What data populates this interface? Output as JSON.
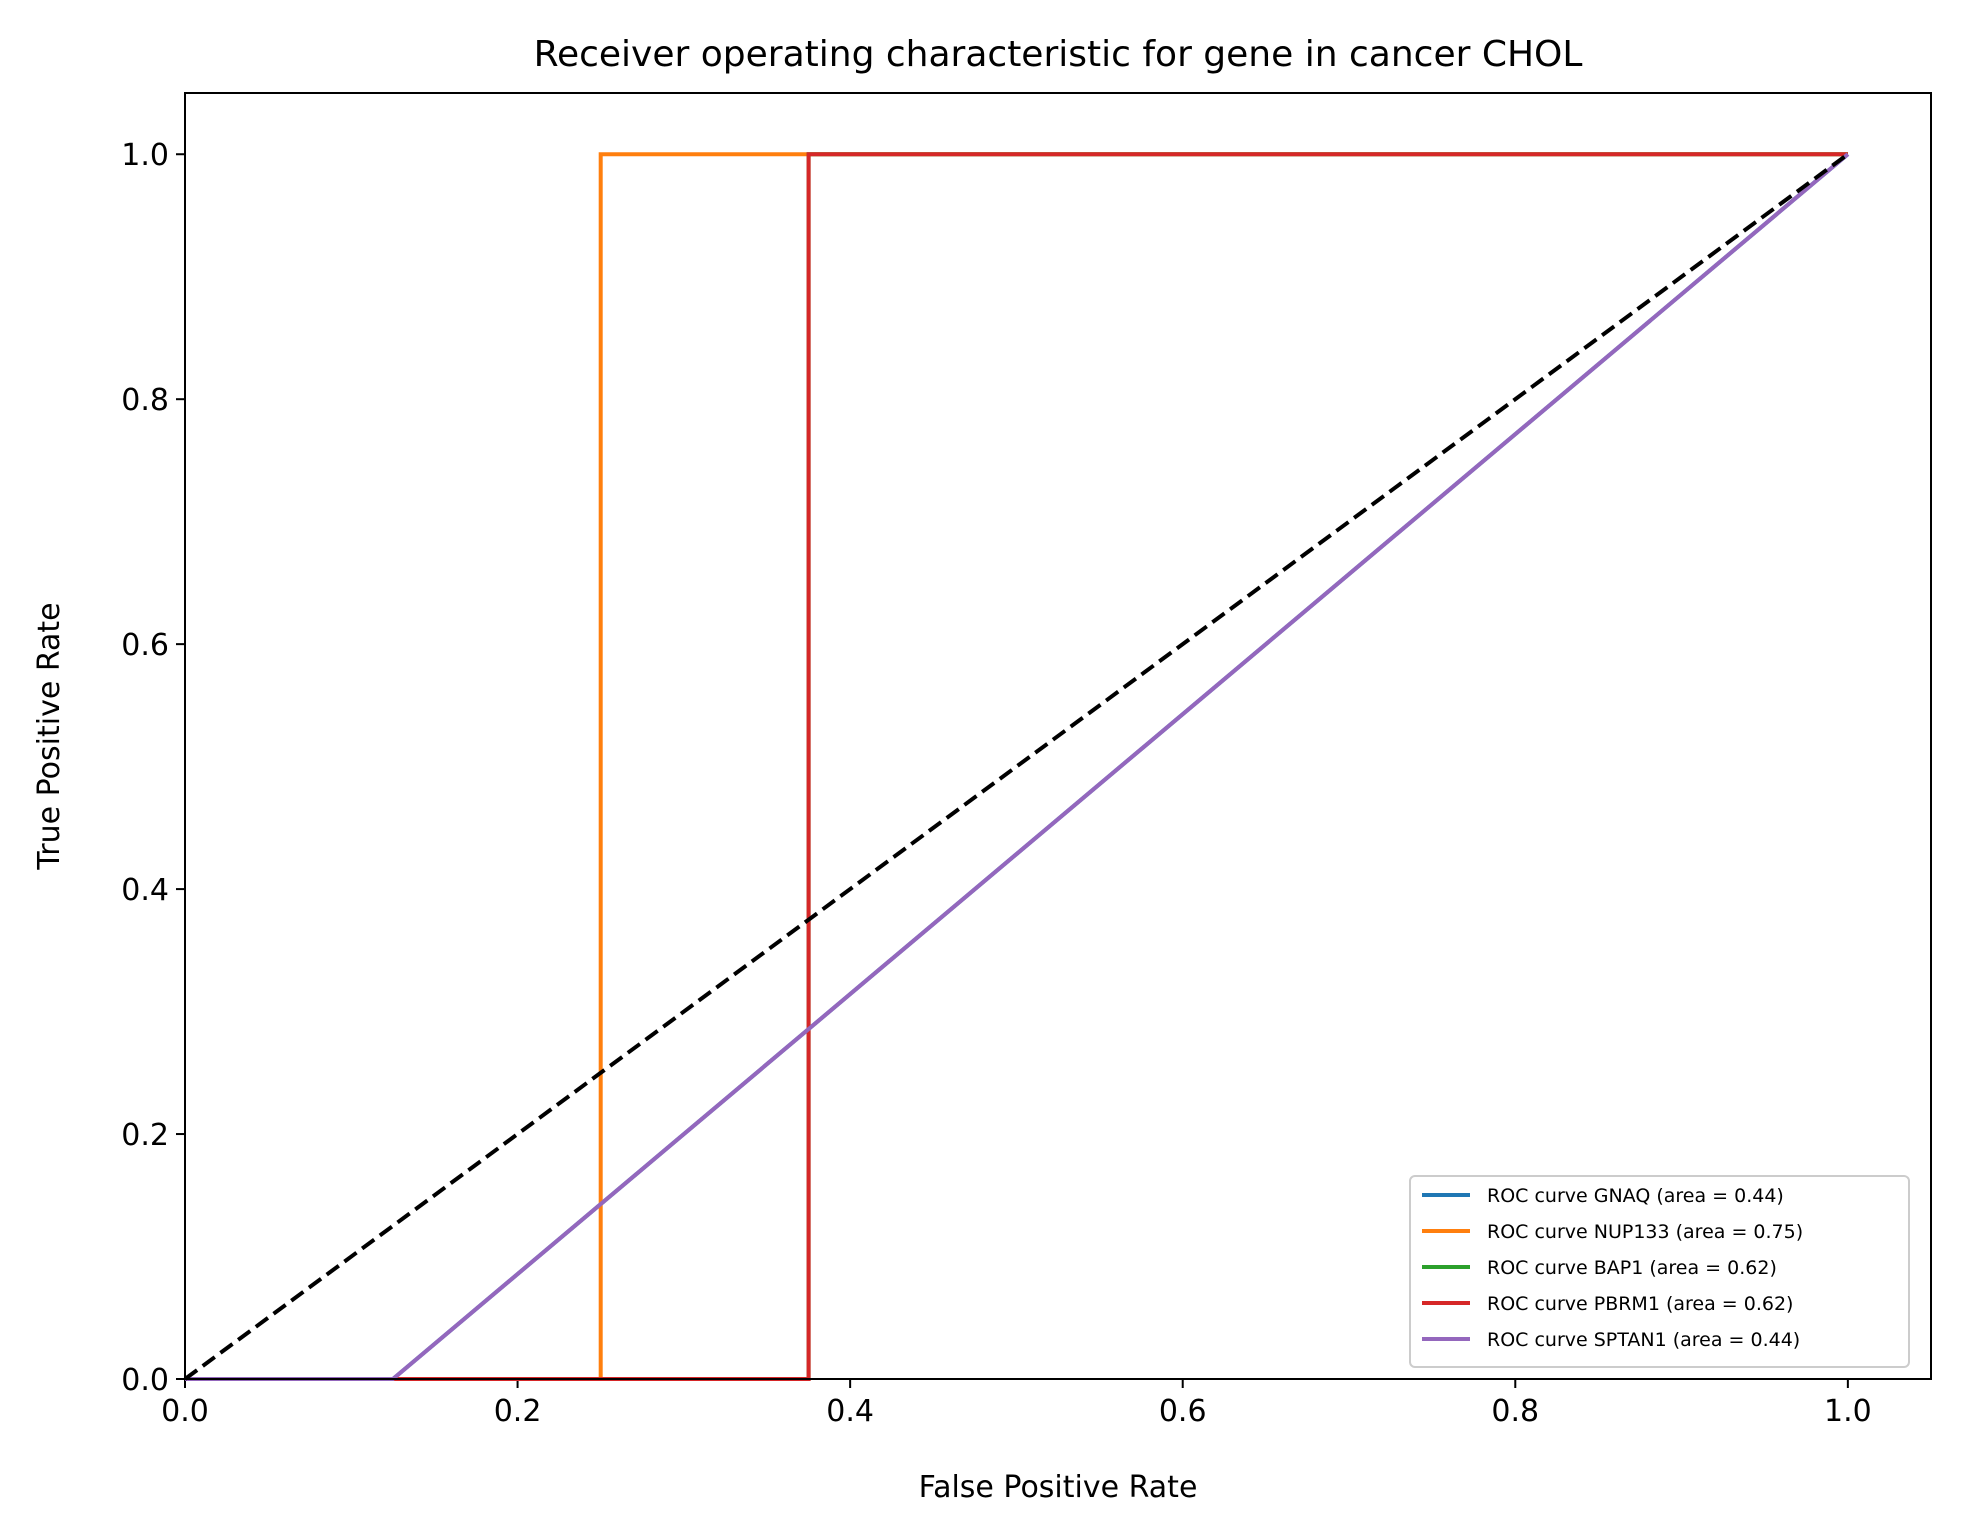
{
  "chart_data": {
    "type": "line",
    "title": "Receiver operating characteristic for gene in cancer CHOL",
    "xlabel": "False Positive Rate",
    "ylabel": "True Positive Rate",
    "xlim": [
      0.0,
      1.05
    ],
    "ylim": [
      0.0,
      1.05
    ],
    "xticks": [
      0.0,
      0.2,
      0.4,
      0.6,
      0.8,
      1.0
    ],
    "xtick_labels": [
      "0.0",
      "0.2",
      "0.4",
      "0.6",
      "0.8",
      "1.0"
    ],
    "yticks": [
      0.0,
      0.2,
      0.4,
      0.6,
      0.8,
      1.0
    ],
    "ytick_labels": [
      "0.0",
      "0.2",
      "0.4",
      "0.6",
      "0.8",
      "1.0"
    ],
    "grid": false,
    "legend_position": "lower-right",
    "series": [
      {
        "name": "ROC curve GNAQ (area = 0.44)",
        "color": "#1f77b4",
        "x": [
          0.0,
          0.125,
          1.0
        ],
        "y": [
          0.0,
          0.0,
          1.0
        ]
      },
      {
        "name": "ROC curve NUP133 (area = 0.75)",
        "color": "#ff7f0e",
        "x": [
          0.0,
          0.25,
          0.25,
          1.0
        ],
        "y": [
          0.0,
          0.0,
          1.0,
          1.0
        ]
      },
      {
        "name": "ROC curve BAP1 (area = 0.62)",
        "color": "#2ca02c",
        "x": [
          0.0,
          0.375,
          0.375,
          1.0
        ],
        "y": [
          0.0,
          0.0,
          1.0,
          1.0
        ]
      },
      {
        "name": "ROC curve PBRM1 (area = 0.62)",
        "color": "#d62728",
        "x": [
          0.0,
          0.375,
          0.375,
          1.0
        ],
        "y": [
          0.0,
          0.0,
          1.0,
          1.0
        ]
      },
      {
        "name": "ROC curve SPTAN1 (area = 0.44)",
        "color": "#9467bd",
        "x": [
          0.0,
          0.125,
          1.0
        ],
        "y": [
          0.0,
          0.0,
          1.0
        ]
      }
    ],
    "reference_line": {
      "color": "#000000",
      "style": "dashed",
      "x": [
        0.0,
        1.0
      ],
      "y": [
        0.0,
        1.0
      ]
    }
  }
}
